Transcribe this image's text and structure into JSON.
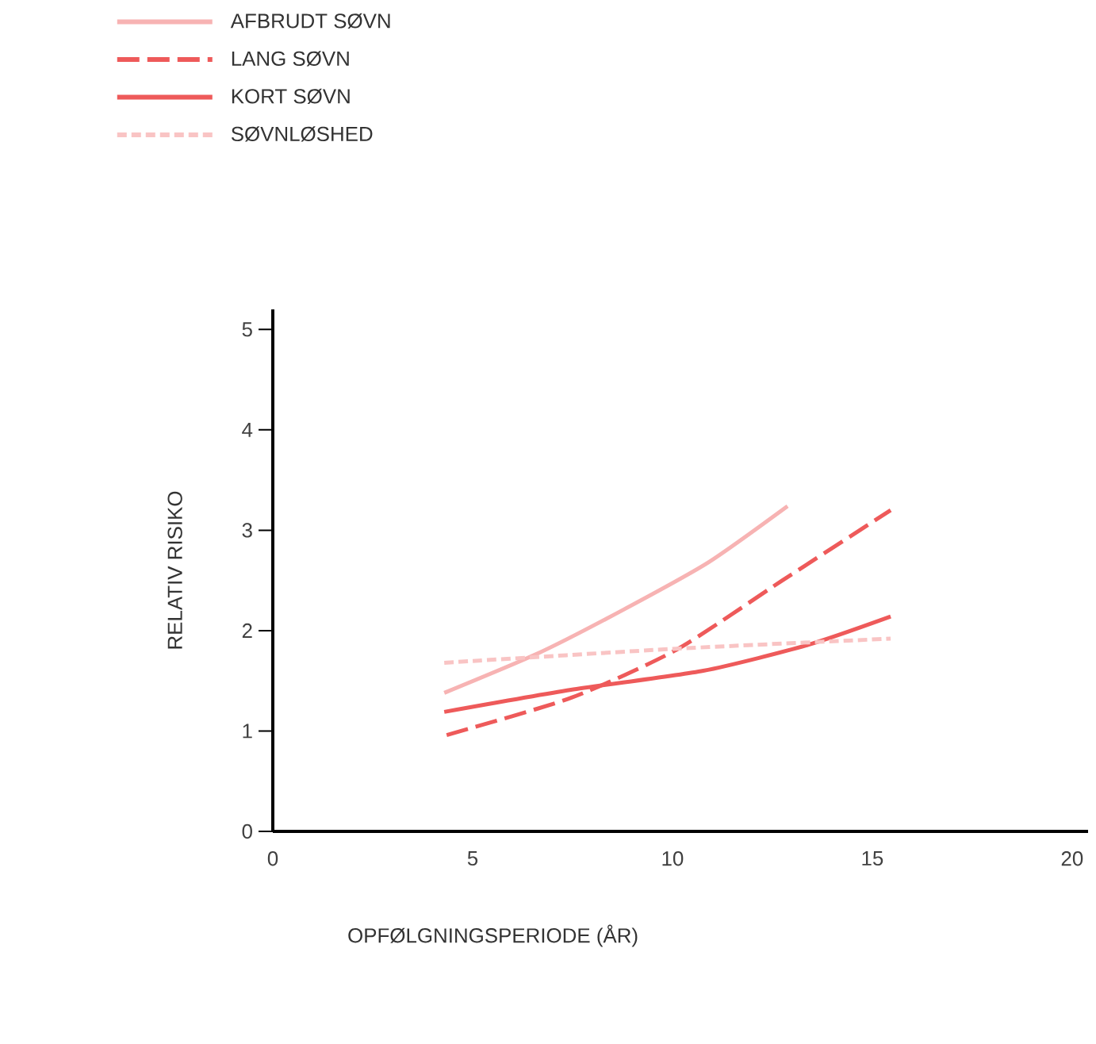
{
  "chart_data": {
    "type": "line",
    "xlabel": "OPFØLGNINGSPERIODE (ÅR)",
    "ylabel": "RELATIV RISIKO",
    "xlim": [
      0,
      20.4
    ],
    "ylim": [
      0,
      5.2
    ],
    "xticks": [
      0,
      5,
      10,
      15,
      20
    ],
    "yticks": [
      0,
      1,
      2,
      3,
      4,
      5
    ],
    "legend": "top left",
    "grid": false,
    "series": [
      {
        "name": "AFBRUDT SØVN",
        "color": "#f7b3b3",
        "line_style": "solid",
        "x": [
          4.29,
          6.67,
          8.78,
          10.9,
          12.88
        ],
        "values": [
          1.38,
          1.78,
          2.21,
          2.68,
          3.24
        ]
      },
      {
        "name": "LANG SØVN",
        "color": "#ee5a5a",
        "line_style": "dashed",
        "x": [
          4.35,
          7.46,
          10.1,
          12.75,
          15.46
        ],
        "values": [
          0.96,
          1.33,
          1.81,
          2.5,
          3.2
        ]
      },
      {
        "name": "KORT SØVN",
        "color": "#ee5a5a",
        "line_style": "solid",
        "x": [
          4.29,
          7.46,
          10.77,
          13.41,
          15.46
        ],
        "values": [
          1.19,
          1.41,
          1.6,
          1.86,
          2.14
        ]
      },
      {
        "name": "SØVNLØSHED",
        "color": "#f9c4c4",
        "line_style": "dotted",
        "x": [
          4.29,
          10.1,
          15.46
        ],
        "values": [
          1.68,
          1.82,
          1.92
        ]
      }
    ]
  }
}
